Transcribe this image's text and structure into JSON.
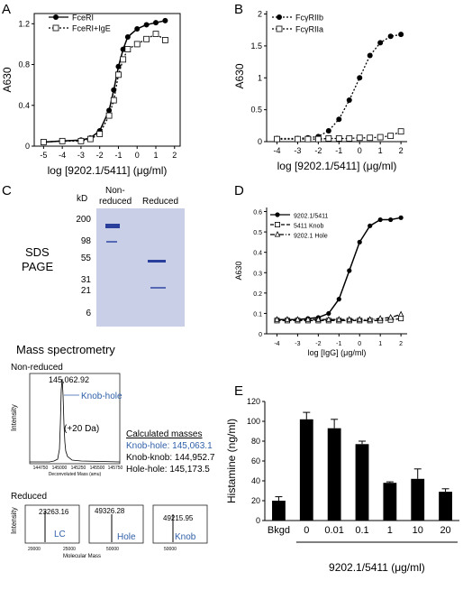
{
  "panel_labels": {
    "A": "A",
    "B": "B",
    "C": "C",
    "D": "D",
    "E": "E"
  },
  "colors": {
    "ink": "#000000",
    "annotation_blue": "#2f5fa8",
    "gel_bg": "#c9cfe6",
    "band_blue": "#2a3f9c"
  },
  "panelC": {
    "sds_label_1": "SDS",
    "sds_label_2": "PAGE",
    "kd_label": "kD",
    "lane_nonreduced_1": "Non-",
    "lane_nonreduced_2": "reduced",
    "lane_reduced": "Reduced",
    "markers": [
      "200",
      "98",
      "55",
      "31",
      "21",
      "6"
    ],
    "mass_spec_title": "Mass spectrometry",
    "nonreduced_title": "Non-reduced",
    "peak_value": "145,062.92",
    "peak_annotation": "Knob-hole",
    "shoulder_annotation": "(+20 Da)",
    "ms_ylabel": "Intensity",
    "ms_xlabel": "Deconvoluted Mass (amu)",
    "ms_xticks": [
      "144750",
      "145000",
      "145250",
      "145500",
      "145750"
    ],
    "calc_title": "Calculated masses",
    "calc_kh": "Knob-hole: 145,063.1",
    "calc_kk": "Knob-knob: 144,952.7",
    "calc_hh": "Hole-hole: 145,173.5",
    "reduced_title": "Reduced",
    "reduced_xlabel": "Molecular Mass",
    "reduced_peaks": [
      {
        "value": "23263.16",
        "label": "LC",
        "xticks": [
          "20000",
          "25000"
        ]
      },
      {
        "value": "49326.28",
        "label": "Hole",
        "xticks": [
          "50000"
        ]
      },
      {
        "value": "49215.95",
        "label": "Knob",
        "xticks": [
          "50000"
        ]
      }
    ]
  },
  "chart_data": [
    {
      "panel": "A",
      "type": "line",
      "xlabel": "log [9202.1/5411] (μg/ml)",
      "ylabel": "A630",
      "xlim": [
        -5.5,
        2.3
      ],
      "ylim": [
        0,
        1.3
      ],
      "xticks": [
        -5,
        -4,
        -3,
        -2,
        -1,
        0,
        1,
        2
      ],
      "yticks": [
        0,
        0.4,
        0.8,
        1.2
      ],
      "legend_position": "top-left",
      "series": [
        {
          "name": "FceRI",
          "marker": "filled-circle",
          "line": "solid",
          "x": [
            -5,
            -4,
            -3,
            -2.5,
            -2,
            -1.5,
            -1.25,
            -1,
            -0.75,
            -0.5,
            0,
            0.5,
            1,
            1.5
          ],
          "y": [
            0.04,
            0.05,
            0.06,
            0.08,
            0.15,
            0.35,
            0.55,
            0.78,
            0.95,
            1.07,
            1.15,
            1.19,
            1.21,
            1.23
          ]
        },
        {
          "name": "FceRI+IgE",
          "marker": "open-square",
          "line": "dotted",
          "x": [
            -5,
            -4,
            -3,
            -2.5,
            -2,
            -1.5,
            -1.25,
            -1,
            -0.75,
            -0.5,
            0,
            0.5,
            1,
            1.5
          ],
          "y": [
            0.04,
            0.05,
            0.05,
            0.07,
            0.12,
            0.3,
            0.45,
            0.7,
            0.85,
            0.95,
            1.0,
            1.05,
            1.1,
            1.04
          ]
        }
      ]
    },
    {
      "panel": "B",
      "type": "line",
      "xlabel": "log [9202.1/5411] (μg/ml)",
      "ylabel": "A630",
      "xlim": [
        -4.5,
        2.3
      ],
      "ylim": [
        0,
        2.05
      ],
      "xticks": [
        -4,
        -3,
        -2,
        -1,
        0,
        1,
        2
      ],
      "yticks": [
        0,
        0.5,
        1,
        1.5,
        2
      ],
      "legend_position": "top-left",
      "series": [
        {
          "name": "FcγRIIb",
          "marker": "filled-circle",
          "line": "dotted",
          "x": [
            -4,
            -3,
            -2.5,
            -2,
            -1.5,
            -1,
            -0.5,
            0,
            0.5,
            1,
            1.5,
            2
          ],
          "y": [
            0.05,
            0.05,
            0.06,
            0.08,
            0.17,
            0.35,
            0.65,
            1.0,
            1.35,
            1.55,
            1.65,
            1.68
          ]
        },
        {
          "name": "FcγRIIa",
          "marker": "open-square",
          "line": "dotted",
          "x": [
            -4,
            -3,
            -2.5,
            -2,
            -1.5,
            -1,
            -0.5,
            0,
            0.5,
            1,
            1.5,
            2
          ],
          "y": [
            0.04,
            0.04,
            0.04,
            0.04,
            0.05,
            0.05,
            0.05,
            0.06,
            0.06,
            0.07,
            0.09,
            0.16
          ]
        }
      ]
    },
    {
      "panel": "D",
      "type": "line",
      "xlabel": "log [IgG] (μg/ml)",
      "ylabel": "A630",
      "xlim": [
        -4.5,
        2.3
      ],
      "ylim": [
        0,
        0.62
      ],
      "xticks": [
        -4,
        -3,
        -2,
        -1,
        0,
        1,
        2
      ],
      "yticks": [
        0,
        0.1,
        0.2,
        0.3,
        0.4,
        0.5,
        0.6
      ],
      "legend_position": "top-left",
      "series": [
        {
          "name": "9202.1/5411",
          "marker": "filled-circle",
          "line": "solid",
          "x": [
            -4,
            -3.5,
            -3,
            -2.5,
            -2,
            -1.5,
            -1,
            -0.5,
            0,
            0.5,
            1,
            1.5,
            2
          ],
          "y": [
            0.07,
            0.07,
            0.07,
            0.075,
            0.08,
            0.1,
            0.17,
            0.31,
            0.45,
            0.53,
            0.56,
            0.56,
            0.57
          ]
        },
        {
          "name": "5411 Knob",
          "marker": "open-square",
          "line": "dashed",
          "x": [
            -4,
            -3.5,
            -3,
            -2.5,
            -2,
            -1.5,
            -1,
            -0.5,
            0,
            0.5,
            1,
            1.5,
            2
          ],
          "y": [
            0.065,
            0.065,
            0.065,
            0.065,
            0.065,
            0.065,
            0.065,
            0.065,
            0.065,
            0.065,
            0.065,
            0.068,
            0.075
          ]
        },
        {
          "name": "9202.1 Hole",
          "marker": "open-triangle",
          "line": "dash-dot",
          "x": [
            -4,
            -3.5,
            -3,
            -2.5,
            -2,
            -1.5,
            -1,
            -0.5,
            0,
            0.5,
            1,
            1.5,
            2
          ],
          "y": [
            0.07,
            0.07,
            0.07,
            0.07,
            0.07,
            0.07,
            0.07,
            0.07,
            0.07,
            0.07,
            0.075,
            0.08,
            0.095
          ]
        }
      ]
    },
    {
      "panel": "E",
      "type": "bar",
      "xlabel": "9202.1/5411 (μg/ml)",
      "ylabel": "Histamine (ng/ml)",
      "ylim": [
        0,
        120
      ],
      "yticks": [
        0,
        20,
        40,
        60,
        80,
        100,
        120
      ],
      "categories": [
        "Bkgd",
        "0",
        "0.01",
        "0.1",
        "1",
        "10",
        "20"
      ],
      "values": [
        20,
        102,
        93,
        77,
        38,
        42,
        29
      ],
      "errors": [
        4,
        7,
        9,
        3,
        1,
        10,
        3
      ]
    }
  ]
}
